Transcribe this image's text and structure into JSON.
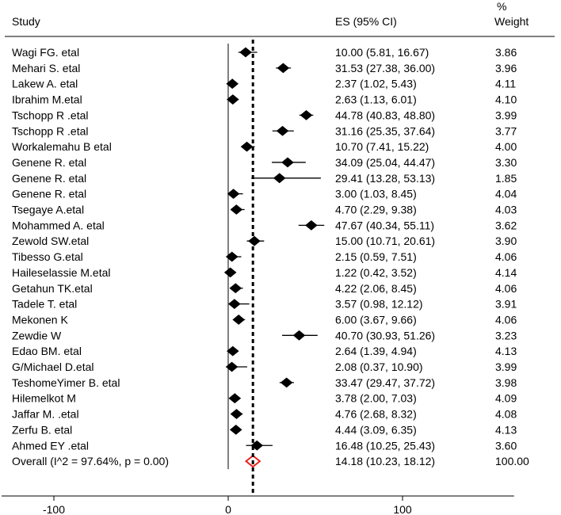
{
  "chart_data": {
    "type": "forest",
    "headers": {
      "study": "Study",
      "es": "ES (95% CI)",
      "weight_line1": "%",
      "weight_line2": "Weight"
    },
    "rows": [
      {
        "study": "Wagi FG. etal",
        "es": 10.0,
        "lo": 5.81,
        "hi": 16.67,
        "ci_text": "10.00 (5.81, 16.67)",
        "weight": "3.86"
      },
      {
        "study": "Mehari S. etal",
        "es": 31.53,
        "lo": 27.38,
        "hi": 36.0,
        "ci_text": "31.53 (27.38, 36.00)",
        "weight": "3.96"
      },
      {
        "study": "Lakew A. etal",
        "es": 2.37,
        "lo": 1.02,
        "hi": 5.43,
        "ci_text": "2.37 (1.02, 5.43)",
        "weight": "4.11"
      },
      {
        "study": "Ibrahim M.etal",
        "es": 2.63,
        "lo": 1.13,
        "hi": 6.01,
        "ci_text": "2.63 (1.13, 6.01)",
        "weight": "4.10"
      },
      {
        "study": "Tschopp R .etal",
        "es": 44.78,
        "lo": 40.83,
        "hi": 48.8,
        "ci_text": "44.78 (40.83, 48.80)",
        "weight": "3.99"
      },
      {
        "study": "Tschopp R .etal",
        "es": 31.16,
        "lo": 25.35,
        "hi": 37.64,
        "ci_text": "31.16 (25.35, 37.64)",
        "weight": "3.77"
      },
      {
        "study": "Workalemahu B etal",
        "es": 10.7,
        "lo": 7.41,
        "hi": 15.22,
        "ci_text": "10.70 (7.41, 15.22)",
        "weight": "4.00"
      },
      {
        "study": "Genene R. etal",
        "es": 34.09,
        "lo": 25.04,
        "hi": 44.47,
        "ci_text": "34.09 (25.04, 44.47)",
        "weight": "3.30"
      },
      {
        "study": "Genene R. etal",
        "es": 29.41,
        "lo": 13.28,
        "hi": 53.13,
        "ci_text": "29.41 (13.28, 53.13)",
        "weight": "1.85"
      },
      {
        "study": "Genene R. etal",
        "es": 3.0,
        "lo": 1.03,
        "hi": 8.45,
        "ci_text": "3.00 (1.03, 8.45)",
        "weight": "4.04"
      },
      {
        "study": "Tsegaye A.etal",
        "es": 4.7,
        "lo": 2.29,
        "hi": 9.38,
        "ci_text": "4.70 (2.29, 9.38)",
        "weight": "4.03"
      },
      {
        "study": "Mohammed A. etal",
        "es": 47.67,
        "lo": 40.34,
        "hi": 55.11,
        "ci_text": "47.67 (40.34, 55.11)",
        "weight": "3.62"
      },
      {
        "study": "Zewold SW.etal",
        "es": 15.0,
        "lo": 10.71,
        "hi": 20.61,
        "ci_text": "15.00 (10.71, 20.61)",
        "weight": "3.90"
      },
      {
        "study": "Tibesso G.etal",
        "es": 2.15,
        "lo": 0.59,
        "hi": 7.51,
        "ci_text": "2.15 (0.59, 7.51)",
        "weight": "4.06"
      },
      {
        "study": "Haileselassie M.etal",
        "es": 1.22,
        "lo": 0.42,
        "hi": 3.52,
        "ci_text": "1.22 (0.42, 3.52)",
        "weight": "4.14"
      },
      {
        "study": "Getahun TK.etal",
        "es": 4.22,
        "lo": 2.06,
        "hi": 8.45,
        "ci_text": "4.22 (2.06, 8.45)",
        "weight": "4.06"
      },
      {
        "study": "Tadele T. etal",
        "es": 3.57,
        "lo": 0.98,
        "hi": 12.12,
        "ci_text": "3.57 (0.98, 12.12)",
        "weight": "3.91"
      },
      {
        "study": "Mekonen K",
        "es": 6.0,
        "lo": 3.67,
        "hi": 9.66,
        "ci_text": "6.00 (3.67, 9.66)",
        "weight": "4.06"
      },
      {
        "study": "Zewdie W",
        "es": 40.7,
        "lo": 30.93,
        "hi": 51.26,
        "ci_text": "40.70 (30.93, 51.26)",
        "weight": "3.23"
      },
      {
        "study": "Edao BM. etal",
        "es": 2.64,
        "lo": 1.39,
        "hi": 4.94,
        "ci_text": "2.64 (1.39, 4.94)",
        "weight": "4.13"
      },
      {
        "study": "G/Michael D.etal",
        "es": 2.08,
        "lo": 0.37,
        "hi": 10.9,
        "ci_text": "2.08 (0.37, 10.90)",
        "weight": "3.99"
      },
      {
        "study": "TeshomeYimer B. etal",
        "es": 33.47,
        "lo": 29.47,
        "hi": 37.72,
        "ci_text": "33.47 (29.47, 37.72)",
        "weight": "3.98"
      },
      {
        "study": "Hilemelkot M",
        "es": 3.78,
        "lo": 2.0,
        "hi": 7.03,
        "ci_text": "3.78 (2.00, 7.03)",
        "weight": "4.09"
      },
      {
        "study": "Jaffar M. .etal",
        "es": 4.76,
        "lo": 2.68,
        "hi": 8.32,
        "ci_text": "4.76 (2.68, 8.32)",
        "weight": "4.08"
      },
      {
        "study": "Zerfu B. etal",
        "es": 4.44,
        "lo": 3.09,
        "hi": 6.35,
        "ci_text": "4.44 (3.09, 6.35)",
        "weight": "4.13"
      },
      {
        "study": "Ahmed EY .etal",
        "es": 16.48,
        "lo": 10.25,
        "hi": 25.43,
        "ci_text": "16.48 (10.25, 25.43)",
        "weight": "3.60"
      }
    ],
    "overall": {
      "label": "Overall  (I^2 = 97.64%, p = 0.00)",
      "es": 14.18,
      "lo": 10.23,
      "hi": 18.12,
      "ci_text": "14.18 (10.23, 18.12)",
      "weight": "100.00",
      "color": "#e8221b"
    },
    "x_ticks": [
      -100,
      0,
      100
    ],
    "x_tick_labels": [
      "-100",
      "0",
      "100"
    ],
    "xlim": [
      -130,
      164
    ],
    "null_line": 0,
    "pooled_line": 14.18,
    "marker_color": "#000000"
  }
}
